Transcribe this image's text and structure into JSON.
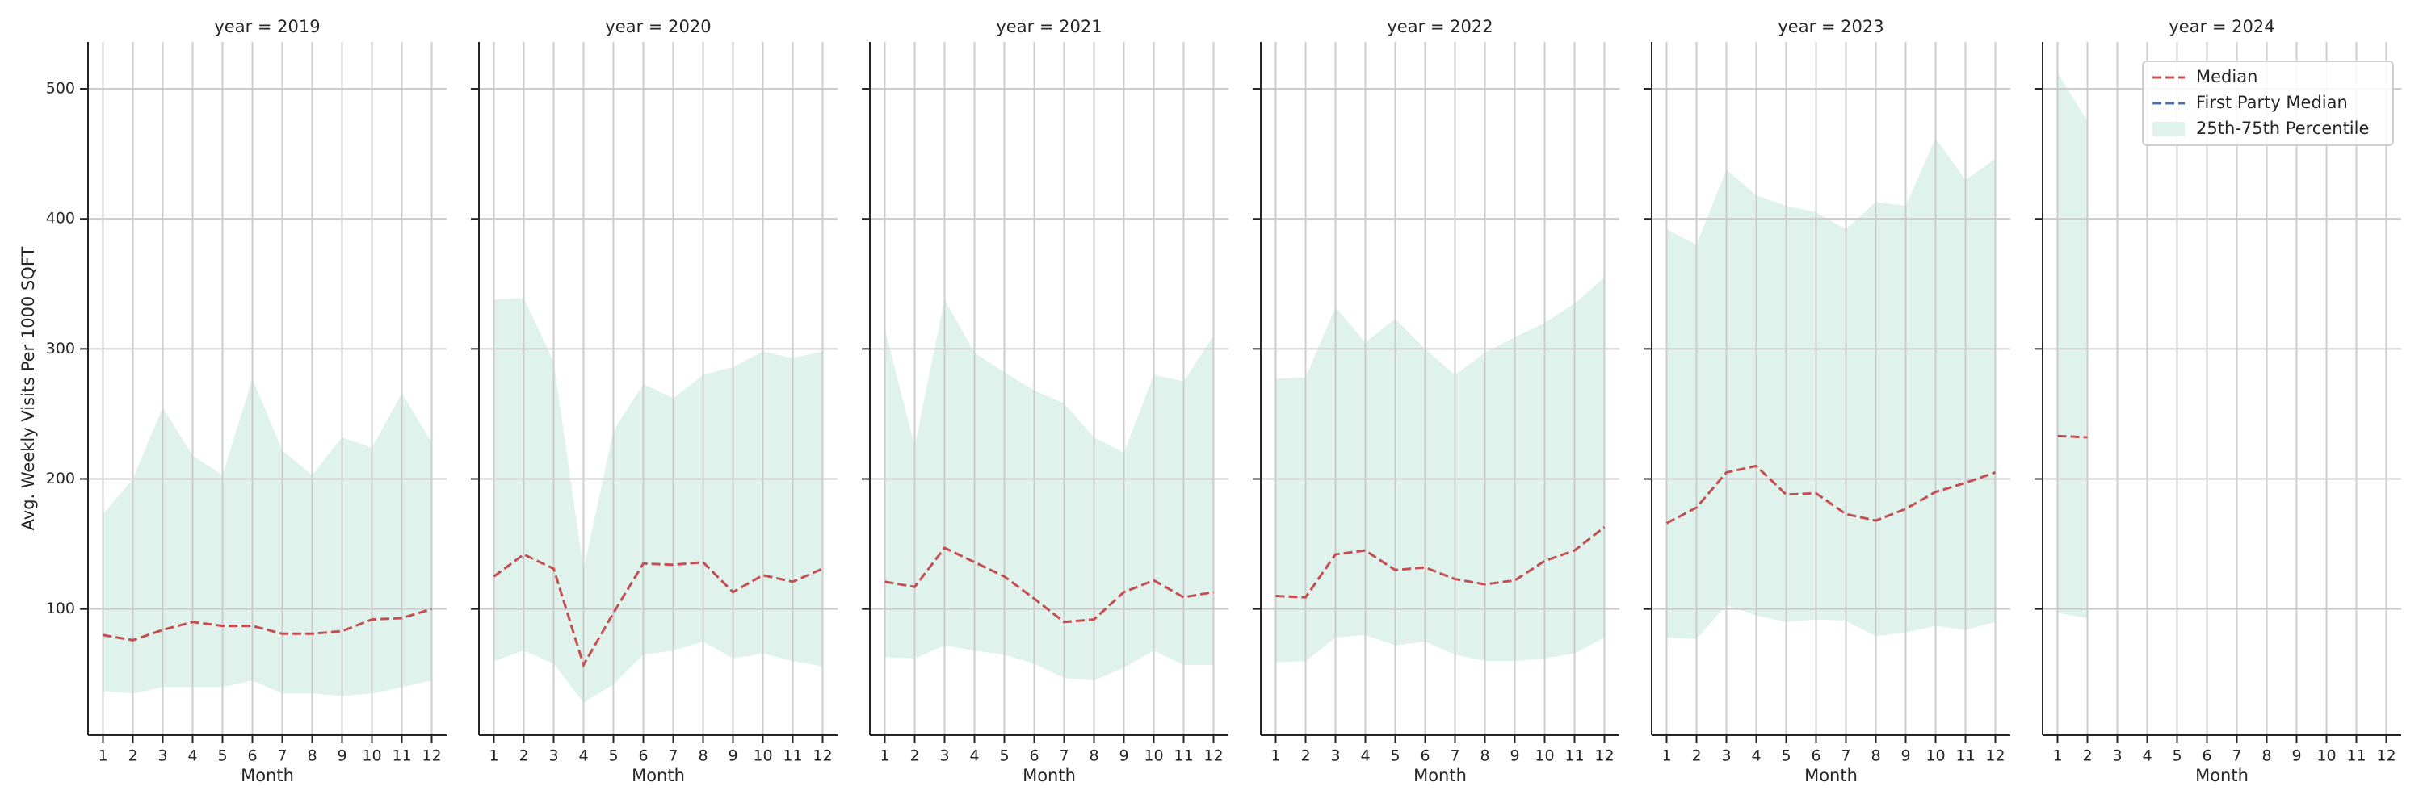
{
  "chart_data": [
    {
      "type": "line",
      "title": "year = 2019",
      "x_label": "Month",
      "y_label": "Avg. Weekly Visits Per 1000 SQFT",
      "x": [
        1,
        2,
        3,
        4,
        5,
        6,
        7,
        8,
        9,
        10,
        11,
        12
      ],
      "xlim": [
        0.5,
        12.5
      ],
      "xticks": [
        1,
        2,
        3,
        4,
        5,
        6,
        7,
        8,
        9,
        10,
        11,
        12
      ],
      "ylim": [
        3,
        536
      ],
      "yticks": [
        100,
        200,
        300,
        400,
        500
      ],
      "grid": true,
      "series": [
        {
          "name": "Median",
          "color": "#c44e52",
          "values": [
            80,
            76,
            84,
            90,
            87,
            87,
            81,
            81,
            83,
            92,
            93,
            100
          ]
        },
        {
          "name": "First Party Median",
          "color": "#4c72b0",
          "values": [
            null,
            null,
            null,
            null,
            null,
            null,
            null,
            null,
            null,
            null,
            null,
            null
          ]
        },
        {
          "name": "25th-75th Percentile",
          "color": "#dff2ec",
          "type": "band",
          "lower": [
            37,
            35,
            40,
            40,
            40,
            45,
            35,
            35,
            33,
            35,
            40,
            45
          ],
          "upper": [
            173,
            200,
            255,
            218,
            203,
            277,
            222,
            203,
            232,
            224,
            266,
            228
          ]
        }
      ]
    },
    {
      "type": "line",
      "title": "year = 2020",
      "x_label": "Month",
      "x": [
        1,
        2,
        3,
        4,
        5,
        6,
        7,
        8,
        9,
        10,
        11,
        12
      ],
      "xlim": [
        0.5,
        12.5
      ],
      "xticks": [
        1,
        2,
        3,
        4,
        5,
        6,
        7,
        8,
        9,
        10,
        11,
        12
      ],
      "ylim": [
        3,
        536
      ],
      "yticks": [
        100,
        200,
        300,
        400,
        500
      ],
      "grid": true,
      "series": [
        {
          "name": "Median",
          "color": "#c44e52",
          "values": [
            125,
            142,
            131,
            57,
            97,
            135,
            134,
            136,
            113,
            126,
            121,
            131
          ]
        },
        {
          "name": "First Party Median",
          "color": "#4c72b0",
          "values": [
            null,
            null,
            null,
            null,
            null,
            null,
            null,
            null,
            null,
            null,
            null,
            null
          ]
        },
        {
          "name": "25th-75th Percentile",
          "color": "#dff2ec",
          "type": "band",
          "lower": [
            60,
            68,
            58,
            28,
            42,
            65,
            68,
            75,
            62,
            66,
            60,
            56
          ],
          "upper": [
            338,
            339,
            290,
            130,
            237,
            273,
            262,
            280,
            286,
            298,
            293,
            298
          ]
        }
      ]
    },
    {
      "type": "line",
      "title": "year = 2021",
      "x_label": "Month",
      "x": [
        1,
        2,
        3,
        4,
        5,
        6,
        7,
        8,
        9,
        10,
        11,
        12
      ],
      "xlim": [
        0.5,
        12.5
      ],
      "xticks": [
        1,
        2,
        3,
        4,
        5,
        6,
        7,
        8,
        9,
        10,
        11,
        12
      ],
      "ylim": [
        3,
        536
      ],
      "yticks": [
        100,
        200,
        300,
        400,
        500
      ],
      "grid": true,
      "series": [
        {
          "name": "Median",
          "color": "#c44e52",
          "values": [
            121,
            117,
            147,
            136,
            125,
            108,
            90,
            92,
            113,
            122,
            109,
            113
          ]
        },
        {
          "name": "First Party Median",
          "color": "#4c72b0",
          "values": [
            null,
            null,
            null,
            null,
            null,
            null,
            null,
            null,
            null,
            null,
            null,
            null
          ]
        },
        {
          "name": "25th-75th Percentile",
          "color": "#dff2ec",
          "type": "band",
          "lower": [
            63,
            62,
            72,
            68,
            65,
            58,
            47,
            45,
            55,
            68,
            57,
            57
          ],
          "upper": [
            315,
            225,
            338,
            297,
            282,
            268,
            258,
            232,
            220,
            280,
            275,
            310
          ]
        }
      ]
    },
    {
      "type": "line",
      "title": "year = 2022",
      "x_label": "Month",
      "x": [
        1,
        2,
        3,
        4,
        5,
        6,
        7,
        8,
        9,
        10,
        11,
        12
      ],
      "xlim": [
        0.5,
        12.5
      ],
      "xticks": [
        1,
        2,
        3,
        4,
        5,
        6,
        7,
        8,
        9,
        10,
        11,
        12
      ],
      "ylim": [
        3,
        536
      ],
      "yticks": [
        100,
        200,
        300,
        400,
        500
      ],
      "grid": true,
      "series": [
        {
          "name": "Median",
          "color": "#c44e52",
          "values": [
            110,
            109,
            142,
            145,
            130,
            132,
            123,
            119,
            122,
            137,
            145,
            163
          ]
        },
        {
          "name": "First Party Median",
          "color": "#4c72b0",
          "values": [
            null,
            null,
            null,
            null,
            null,
            null,
            null,
            null,
            null,
            null,
            null,
            null
          ]
        },
        {
          "name": "25th-75th Percentile",
          "color": "#dff2ec",
          "type": "band",
          "lower": [
            59,
            60,
            78,
            80,
            72,
            75,
            65,
            60,
            60,
            62,
            66,
            78
          ],
          "upper": [
            277,
            278,
            332,
            305,
            323,
            300,
            280,
            297,
            309,
            320,
            335,
            355
          ]
        }
      ]
    },
    {
      "type": "line",
      "title": "year = 2023",
      "x_label": "Month",
      "x": [
        1,
        2,
        3,
        4,
        5,
        6,
        7,
        8,
        9,
        10,
        11,
        12
      ],
      "xlim": [
        0.5,
        12.5
      ],
      "xticks": [
        1,
        2,
        3,
        4,
        5,
        6,
        7,
        8,
        9,
        10,
        11,
        12
      ],
      "ylim": [
        3,
        536
      ],
      "yticks": [
        100,
        200,
        300,
        400,
        500
      ],
      "grid": true,
      "series": [
        {
          "name": "Median",
          "color": "#c44e52",
          "values": [
            166,
            178,
            205,
            210,
            188,
            189,
            173,
            168,
            177,
            190,
            197,
            205
          ]
        },
        {
          "name": "First Party Median",
          "color": "#4c72b0",
          "values": [
            null,
            null,
            null,
            null,
            null,
            null,
            null,
            null,
            null,
            null,
            null,
            null
          ]
        },
        {
          "name": "25th-75th Percentile",
          "color": "#dff2ec",
          "type": "band",
          "lower": [
            78,
            77,
            103,
            95,
            90,
            92,
            91,
            79,
            82,
            87,
            84,
            90
          ],
          "upper": [
            392,
            380,
            438,
            418,
            410,
            405,
            392,
            413,
            410,
            462,
            430,
            446
          ]
        }
      ]
    },
    {
      "type": "line",
      "title": "year = 2024",
      "x_label": "Month",
      "legend": "upper right",
      "x": [
        1,
        2,
        3,
        4,
        5,
        6,
        7,
        8,
        9,
        10,
        11,
        12
      ],
      "xlim": [
        0.5,
        12.5
      ],
      "xticks": [
        1,
        2,
        3,
        4,
        5,
        6,
        7,
        8,
        9,
        10,
        11,
        12
      ],
      "ylim": [
        3,
        536
      ],
      "yticks": [
        100,
        200,
        300,
        400,
        500
      ],
      "grid": true,
      "series": [
        {
          "name": "Median",
          "color": "#c44e52",
          "values": [
            233,
            232,
            null,
            null,
            null,
            null,
            null,
            null,
            null,
            null,
            null,
            null
          ]
        },
        {
          "name": "First Party Median",
          "color": "#4c72b0",
          "values": [
            null,
            null,
            null,
            null,
            null,
            null,
            null,
            null,
            null,
            null,
            null,
            null
          ]
        },
        {
          "name": "25th-75th Percentile",
          "color": "#dff2ec",
          "type": "band",
          "lower": [
            97,
            93,
            null,
            null,
            null,
            null,
            null,
            null,
            null,
            null,
            null,
            null
          ],
          "upper": [
            512,
            475,
            null,
            null,
            null,
            null,
            null,
            null,
            null,
            null,
            null,
            null
          ]
        }
      ]
    }
  ]
}
